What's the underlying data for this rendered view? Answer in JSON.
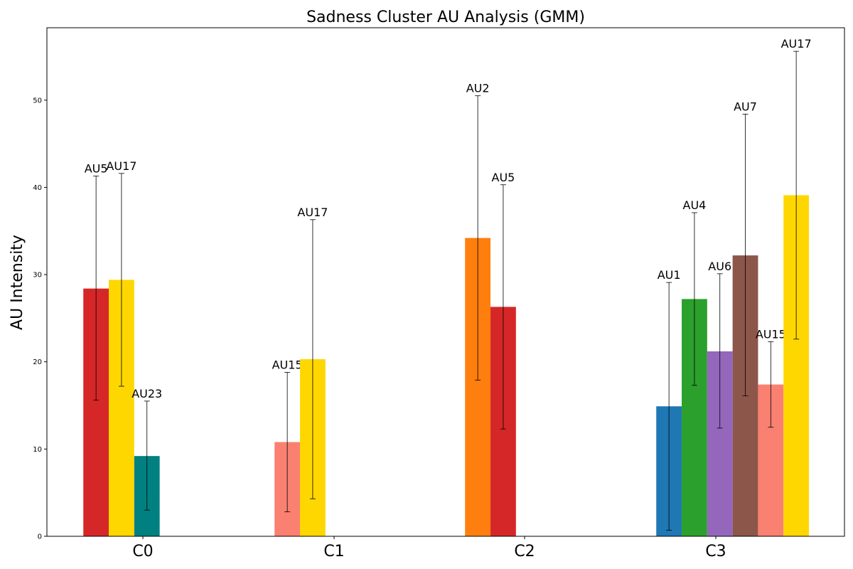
{
  "chart_data": {
    "type": "bar",
    "title": "Sadness Cluster AU Analysis (GMM)",
    "xlabel": "",
    "ylabel": "AU Intensity",
    "ylim": [
      0,
      58.3
    ],
    "yticks": [
      0,
      10,
      20,
      30,
      40,
      50
    ],
    "grid": false,
    "colors": {
      "AU1": "#1f77b4",
      "AU2": "#ff7f0e",
      "AU4": "#2ca02c",
      "AU5": "#d62728",
      "AU6": "#9467bd",
      "AU7": "#8c564b",
      "AU15": "#fa8072",
      "AU17": "#ffd700",
      "AU23": "#008080"
    },
    "groups": [
      {
        "label": "C0",
        "bars": [
          {
            "au": "AU5",
            "value": 28.4,
            "err_low": 15.6,
            "err_high": 41.3
          },
          {
            "au": "AU17",
            "value": 29.4,
            "err_low": 17.2,
            "err_high": 41.6
          },
          {
            "au": "AU23",
            "value": 9.2,
            "err_low": 3.0,
            "err_high": 15.5
          }
        ]
      },
      {
        "label": "C1",
        "bars": [
          {
            "au": "AU15",
            "value": 10.8,
            "err_low": 2.8,
            "err_high": 18.8
          },
          {
            "au": "AU17",
            "value": 20.3,
            "err_low": 4.3,
            "err_high": 36.3
          }
        ]
      },
      {
        "label": "C2",
        "bars": [
          {
            "au": "AU2",
            "value": 34.2,
            "err_low": 17.9,
            "err_high": 50.5
          },
          {
            "au": "AU5",
            "value": 26.3,
            "err_low": 12.3,
            "err_high": 40.3
          }
        ]
      },
      {
        "label": "C3",
        "bars": [
          {
            "au": "AU1",
            "value": 14.9,
            "err_low": 0.7,
            "err_high": 29.1
          },
          {
            "au": "AU4",
            "value": 27.2,
            "err_low": 17.3,
            "err_high": 37.1
          },
          {
            "au": "AU6",
            "value": 21.2,
            "err_low": 12.4,
            "err_high": 30.1
          },
          {
            "au": "AU7",
            "value": 32.2,
            "err_low": 16.1,
            "err_high": 48.4
          },
          {
            "au": "AU15",
            "value": 17.4,
            "err_low": 12.5,
            "err_high": 22.3
          },
          {
            "au": "AU17",
            "value": 39.1,
            "err_low": 22.6,
            "err_high": 55.6
          }
        ]
      }
    ]
  }
}
